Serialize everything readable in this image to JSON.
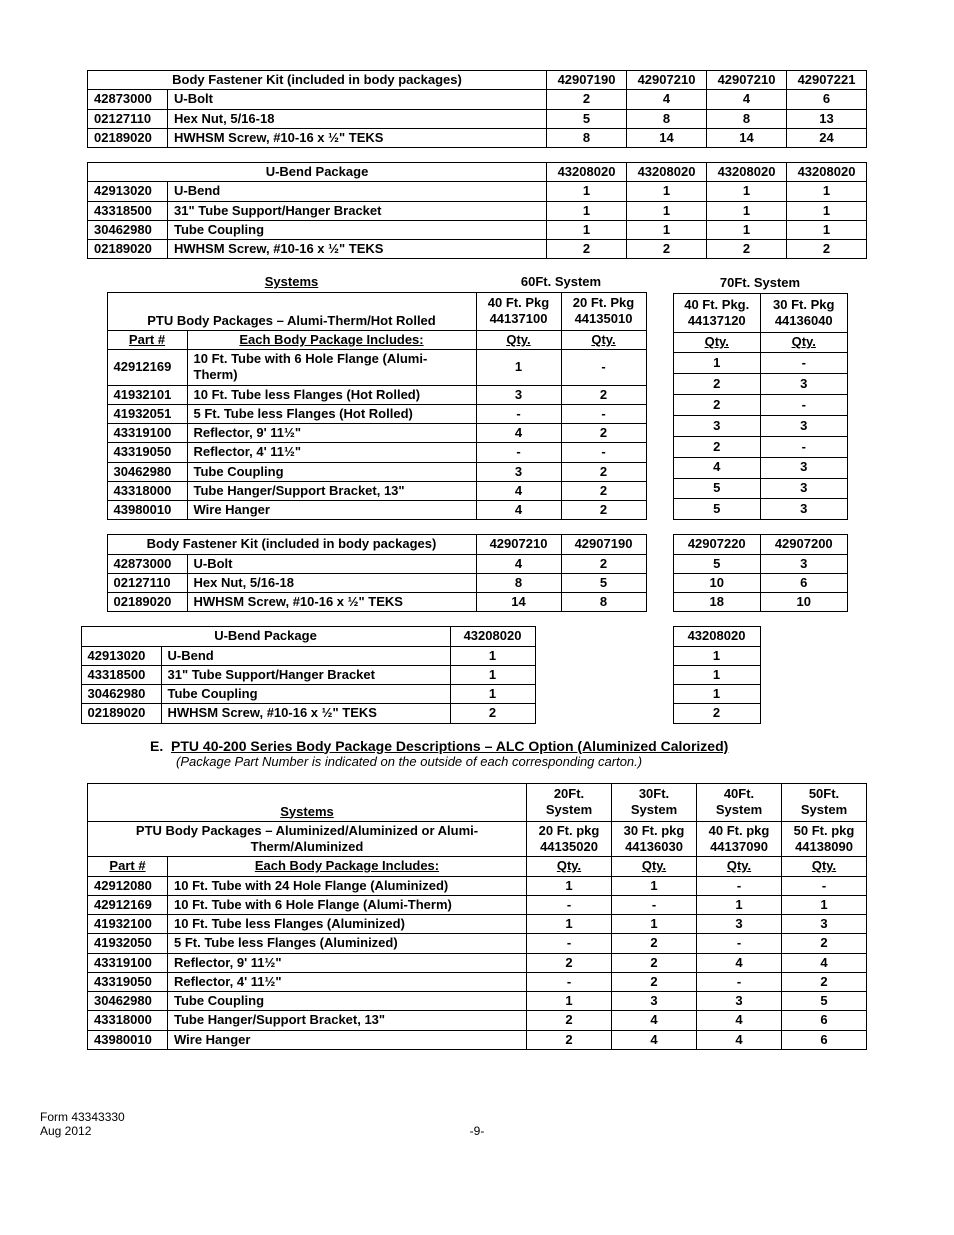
{
  "table1": {
    "title": "Body Fastener Kit (included in body packages)",
    "codes": [
      "42907190",
      "42907210",
      "42907210",
      "42907221"
    ],
    "rows": [
      {
        "part": "42873000",
        "desc": "U-Bolt",
        "q": [
          "2",
          "4",
          "4",
          "6"
        ]
      },
      {
        "part": "02127110",
        "desc": "Hex Nut, 5/16-18",
        "q": [
          "5",
          "8",
          "8",
          "13"
        ]
      },
      {
        "part": "02189020",
        "desc": "HWHSM Screw, #10-16 x ½\" TEKS",
        "q": [
          "8",
          "14",
          "14",
          "24"
        ]
      }
    ]
  },
  "table2": {
    "title": "U-Bend Package",
    "codes": [
      "43208020",
      "43208020",
      "43208020",
      "43208020"
    ],
    "rows": [
      {
        "part": "42913020",
        "desc": "U-Bend",
        "q": [
          "1",
          "1",
          "1",
          "1"
        ]
      },
      {
        "part": "43318500",
        "desc": "31\" Tube Support/Hanger Bracket",
        "q": [
          "1",
          "1",
          "1",
          "1"
        ]
      },
      {
        "part": "30462980",
        "desc": "Tube Coupling",
        "q": [
          "1",
          "1",
          "1",
          "1"
        ]
      },
      {
        "part": "02189020",
        "desc": "HWHSM Screw, #10-16 x ½\" TEKS",
        "q": [
          "2",
          "2",
          "2",
          "2"
        ]
      }
    ]
  },
  "table3": {
    "systemsLabel": "Systems",
    "sys60": "60Ft. System",
    "sys70": "70Ft. System",
    "pkgTitle": "PTU Body Packages – Alumi-Therm/Hot Rolled",
    "partLabel": "Part #",
    "includesLabel": "Each Body Package Includes:",
    "qtyLabel": "Qty.",
    "colL": {
      "h1": "40 Ft. Pkg",
      "h2": "44137100"
    },
    "colL2": {
      "h1": "20 Ft. Pkg",
      "h2": "44135010"
    },
    "colR": {
      "h1": "40 Ft. Pkg.",
      "h2": "44137120"
    },
    "colR2": {
      "h1": "30 Ft. Pkg",
      "h2": "44136040"
    },
    "rows": [
      {
        "part": "42912169",
        "desc": "10 Ft. Tube with 6 Hole Flange (Alumi-Therm)",
        "l1": "1",
        "l2": "-",
        "r1": "1",
        "r2": "-"
      },
      {
        "part": "41932101",
        "desc": "10 Ft. Tube less Flanges (Hot Rolled)",
        "l1": "3",
        "l2": "2",
        "r1": "2",
        "r2": "3"
      },
      {
        "part": "41932051",
        "desc": "5 Ft. Tube less Flanges (Hot Rolled)",
        "l1": "-",
        "l2": "-",
        "r1": "2",
        "r2": "-"
      },
      {
        "part": "43319100",
        "desc": "Reflector, 9' 11½\"",
        "l1": "4",
        "l2": "2",
        "r1": "3",
        "r2": "3"
      },
      {
        "part": "43319050",
        "desc": "Reflector, 4' 11½\"",
        "l1": "-",
        "l2": "-",
        "r1": "2",
        "r2": "-"
      },
      {
        "part": "30462980",
        "desc": "Tube Coupling",
        "l1": "3",
        "l2": "2",
        "r1": "4",
        "r2": "3"
      },
      {
        "part": "43318000",
        "desc": "Tube Hanger/Support Bracket, 13\"",
        "l1": "4",
        "l2": "2",
        "r1": "5",
        "r2": "3"
      },
      {
        "part": "43980010",
        "desc": "Wire Hanger",
        "l1": "4",
        "l2": "2",
        "r1": "5",
        "r2": "3"
      }
    ]
  },
  "table4": {
    "title": "Body Fastener Kit (included in body packages)",
    "codesL": [
      "42907210",
      "42907190"
    ],
    "codesR": [
      "42907220",
      "42907200"
    ],
    "rows": [
      {
        "part": "42873000",
        "desc": "U-Bolt",
        "l": [
          "4",
          "2"
        ],
        "r": [
          "5",
          "3"
        ]
      },
      {
        "part": "02127110",
        "desc": "Hex Nut, 5/16-18",
        "l": [
          "8",
          "5"
        ],
        "r": [
          "10",
          "6"
        ]
      },
      {
        "part": "02189020",
        "desc": "HWHSM Screw, #10-16 x ½\" TEKS",
        "l": [
          "14",
          "8"
        ],
        "r": [
          "18",
          "10"
        ]
      }
    ]
  },
  "table5": {
    "title": "U-Bend Package",
    "codeL": "43208020",
    "codeR": "43208020",
    "rows": [
      {
        "part": "42913020",
        "desc": "U-Bend",
        "l": "1",
        "r": "1"
      },
      {
        "part": "43318500",
        "desc": "31\" Tube Support/Hanger Bracket",
        "l": "1",
        "r": "1"
      },
      {
        "part": "30462980",
        "desc": "Tube Coupling",
        "l": "1",
        "r": "1"
      },
      {
        "part": "02189020",
        "desc": "HWHSM Screw, #10-16 x ½\" TEKS",
        "l": "2",
        "r": "2"
      }
    ]
  },
  "sectionE": {
    "letter": "E.",
    "title": "PTU 40-200 Series Body Package Descriptions – ALC Option (Aluminized Calorized)",
    "sub": "(Package Part Number is indicated on the outside of each corresponding carton.)"
  },
  "table6": {
    "systemsLabel": "Systems",
    "sysCols": [
      "20Ft. System",
      "30Ft. System",
      "40Ft. System",
      "50Ft. System"
    ],
    "pkgTitle": "PTU Body Packages – Aluminized/Aluminized or Alumi-Therm/Aluminized",
    "pkgCols": [
      {
        "h1": "20 Ft. pkg",
        "h2": "44135020"
      },
      {
        "h1": "30 Ft. pkg",
        "h2": "44136030"
      },
      {
        "h1": "40 Ft. pkg",
        "h2": "44137090"
      },
      {
        "h1": "50 Ft. pkg",
        "h2": "44138090"
      }
    ],
    "partLabel": "Part #",
    "includesLabel": "Each Body Package Includes:",
    "qtyLabel": "Qty.",
    "rows": [
      {
        "part": "42912080",
        "desc": "10 Ft. Tube with 24 Hole Flange (Aluminized)",
        "q": [
          "1",
          "1",
          "-",
          "-"
        ]
      },
      {
        "part": "42912169",
        "desc": "10 Ft. Tube with 6 Hole Flange (Alumi-Therm)",
        "q": [
          "-",
          "-",
          "1",
          "1"
        ]
      },
      {
        "part": "41932100",
        "desc": "10 Ft. Tube less Flanges (Aluminized)",
        "q": [
          "1",
          "1",
          "3",
          "3"
        ]
      },
      {
        "part": "41932050",
        "desc": "5 Ft. Tube less Flanges (Aluminized)",
        "q": [
          "-",
          "2",
          "-",
          "2"
        ]
      },
      {
        "part": "43319100",
        "desc": "Reflector, 9' 11½\"",
        "q": [
          "2",
          "2",
          "4",
          "4"
        ]
      },
      {
        "part": "43319050",
        "desc": "Reflector, 4' 11½\"",
        "q": [
          "-",
          "2",
          "-",
          "2"
        ]
      },
      {
        "part": "30462980",
        "desc": "Tube Coupling",
        "q": [
          "1",
          "3",
          "3",
          "5"
        ]
      },
      {
        "part": "43318000",
        "desc": "Tube Hanger/Support Bracket, 13\"",
        "q": [
          "2",
          "4",
          "4",
          "6"
        ]
      },
      {
        "part": "43980010",
        "desc": "Wire Hanger",
        "q": [
          "2",
          "4",
          "4",
          "6"
        ]
      }
    ]
  },
  "footer": {
    "form": "Form 43343330",
    "date": "Aug 2012",
    "page": "-9-"
  }
}
